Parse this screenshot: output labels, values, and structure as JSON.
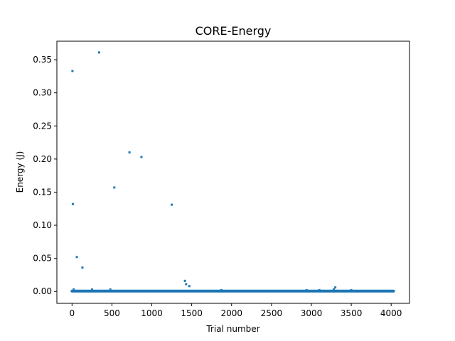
{
  "chart_data": {
    "type": "scatter",
    "title": "CORE-Energy",
    "xlabel": "Trial number",
    "ylabel": "Energy (J)",
    "xlim": [
      -190,
      4230
    ],
    "ylim": [
      -0.018,
      0.378
    ],
    "xticks": [
      0,
      500,
      1000,
      1500,
      2000,
      2500,
      3000,
      3500,
      4000
    ],
    "yticks": [
      0.0,
      0.05,
      0.1,
      0.15,
      0.2,
      0.25,
      0.3,
      0.35
    ],
    "grid": false,
    "legend": "none",
    "marker_color": "#1f77b4",
    "baseline": {
      "x_start": 0,
      "x_end": 4030,
      "y": 0.0005
    },
    "points": [
      {
        "x": 5,
        "y": 0.333
      },
      {
        "x": 10,
        "y": 0.132
      },
      {
        "x": 20,
        "y": 0.003
      },
      {
        "x": 60,
        "y": 0.052
      },
      {
        "x": 130,
        "y": 0.036
      },
      {
        "x": 250,
        "y": 0.003
      },
      {
        "x": 340,
        "y": 0.361
      },
      {
        "x": 480,
        "y": 0.003
      },
      {
        "x": 530,
        "y": 0.157
      },
      {
        "x": 720,
        "y": 0.21
      },
      {
        "x": 870,
        "y": 0.203
      },
      {
        "x": 1250,
        "y": 0.131
      },
      {
        "x": 1415,
        "y": 0.016
      },
      {
        "x": 1430,
        "y": 0.011
      },
      {
        "x": 1470,
        "y": 0.008
      },
      {
        "x": 1870,
        "y": 0.002
      },
      {
        "x": 2940,
        "y": 0.002
      },
      {
        "x": 3100,
        "y": 0.002
      },
      {
        "x": 3280,
        "y": 0.003
      },
      {
        "x": 3300,
        "y": 0.006
      },
      {
        "x": 3500,
        "y": 0.002
      }
    ]
  }
}
